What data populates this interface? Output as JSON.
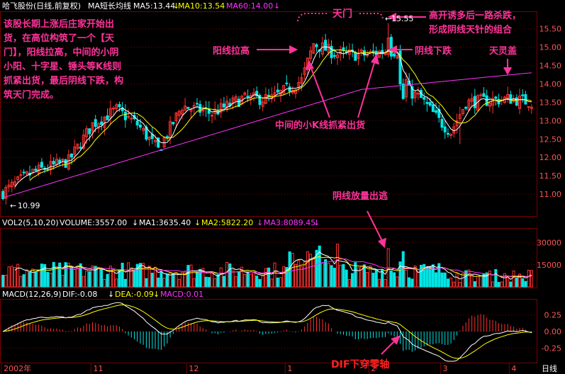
{
  "header": {
    "stock": "哈飞股份(日线,前复权)",
    "ma_name": "MA短长均线",
    "ma5": "MA5:13.44",
    "ma10": "MA10:13.54",
    "ma60": "MA60:14.00"
  },
  "volume_header": {
    "name": "VOL2(5,10,20)",
    "vol": "VOLUME:3557.00",
    "ma1": "MA1:3635.40",
    "ma2": "MA2:5822.20",
    "ma3": "MA3:8089.45"
  },
  "macd_header": {
    "name": "MACD(12,26,9)",
    "dif": "DIF:-0.08",
    "dea": "DEA:-0.09",
    "macd": "MACD:0.01"
  },
  "footer": {
    "dates": [
      "2002年",
      "11",
      "12",
      "1",
      "2",
      "3",
      "4"
    ],
    "period": "日线"
  },
  "annotations": {
    "intro": [
      "该股长期上涨后庄家开始出",
      "货，在高位构筑了一个【天",
      "门】，阳线拉高，中间的小阴",
      "小阳、十字星、锤头等K线则",
      "抓紧出货，最后阴线下跌，构",
      "筑天门完成。"
    ],
    "tianmen": "天门",
    "gaokai": [
      "高开诱多后一路杀跌，",
      "形成阴线天针的组合"
    ],
    "yang": "阳线拉高",
    "yin": "阴线下跌",
    "tianling": "天灵盖",
    "middle": "中间的小K线抓紧出货",
    "fangliang": "阴线放量出逃",
    "dif": "DIF下穿零轴",
    "high": "15.55",
    "low": "10.99"
  },
  "colors": {
    "up": "#ff3232",
    "down": "#00e5e5",
    "ma5": "#ffffff",
    "ma10": "#ffff00",
    "ma60": "#ff33ff",
    "annotation": "#ff3399",
    "grid": "#7a0000",
    "axis_text": "#ff5555"
  },
  "chart_data": [
    {
      "type": "candlestick",
      "title": "哈飞股份(日线,前复权)",
      "ylim": [
        10.5,
        15.9
      ],
      "y_ticks": [
        11.0,
        11.5,
        12.0,
        12.5,
        13.0,
        13.5,
        14.0,
        14.5,
        15.0,
        15.5
      ],
      "series": [
        {
          "name": "MA5"
        },
        {
          "name": "MA10"
        },
        {
          "name": "MA60"
        }
      ],
      "high_label": 15.55,
      "low_label": 10.99,
      "approximate": true
    },
    {
      "type": "bar",
      "title": "VOL2(5,10,20)",
      "ylim": [
        0,
        38000
      ],
      "y_ticks": [
        15000,
        30000
      ],
      "approximate": true
    },
    {
      "type": "bar",
      "title": "MACD(12,26,9)",
      "ylim": [
        -0.45,
        0.45
      ],
      "y_ticks": [
        0.25,
        0.0,
        -0.25
      ],
      "approximate": true
    }
  ]
}
